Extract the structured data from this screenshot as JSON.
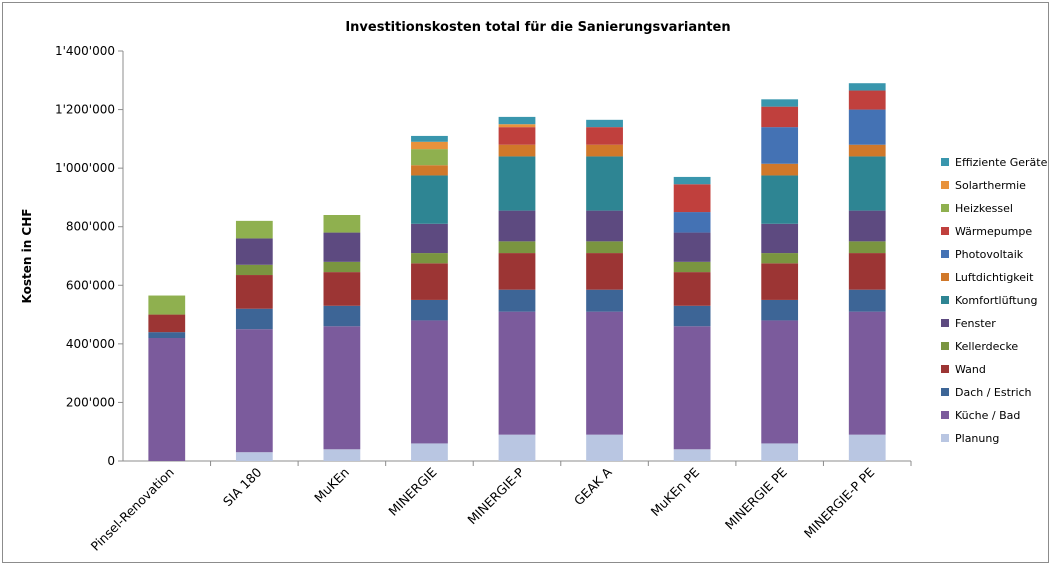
{
  "chart_data": {
    "type": "bar",
    "stacked": true,
    "title": "Investitionskosten total für die Sanierungsvarianten",
    "ylabel": "Kosten in CHF",
    "xlabel": "",
    "ylim": [
      0,
      1400000
    ],
    "yticks": [
      0,
      200000,
      400000,
      600000,
      800000,
      1000000,
      1200000,
      1400000
    ],
    "ytick_labels": [
      "0",
      "200'000",
      "400'000",
      "600'000",
      "800'000",
      "1'000'000",
      "1'200'000",
      "1'400'000"
    ],
    "grid": false,
    "legend_position": "right",
    "categories": [
      "Pinsel-Renovation",
      "SIA 180",
      "MuKEn",
      "MINERGIE",
      "MINERGIE-P",
      "GEAK A",
      "MuKEn PE",
      "MINERGIE PE",
      "MINERGIE-P PE"
    ],
    "series": [
      {
        "name": "Planung",
        "color": "#b9c6e2",
        "values": [
          0,
          30000,
          40000,
          60000,
          90000,
          90000,
          40000,
          60000,
          90000
        ]
      },
      {
        "name": "Küche / Bad",
        "color": "#7b5b9c",
        "values": [
          420000,
          420000,
          420000,
          420000,
          420000,
          420000,
          420000,
          420000,
          420000
        ]
      },
      {
        "name": "Dach / Estrich",
        "color": "#3d6596",
        "values": [
          20000,
          70000,
          70000,
          70000,
          75000,
          75000,
          70000,
          70000,
          75000
        ]
      },
      {
        "name": "Wand",
        "color": "#9c3534",
        "values": [
          60000,
          115000,
          115000,
          125000,
          125000,
          125000,
          115000,
          125000,
          125000
        ]
      },
      {
        "name": "Kellerdecke",
        "color": "#7a9540",
        "values": [
          0,
          35000,
          35000,
          35000,
          40000,
          40000,
          35000,
          35000,
          40000
        ]
      },
      {
        "name": "Fenster",
        "color": "#5d4a80",
        "values": [
          0,
          90000,
          100000,
          100000,
          105000,
          105000,
          100000,
          100000,
          105000
        ]
      },
      {
        "name": "Komfortlüftung",
        "color": "#2e8593",
        "values": [
          0,
          0,
          0,
          165000,
          185000,
          185000,
          0,
          165000,
          185000
        ]
      },
      {
        "name": "Luftdichtigkeit",
        "color": "#d0782a",
        "values": [
          0,
          0,
          0,
          35000,
          40000,
          40000,
          0,
          40000,
          40000
        ]
      },
      {
        "name": "Photovoltaik",
        "color": "#4472b4",
        "values": [
          0,
          0,
          0,
          0,
          0,
          0,
          70000,
          125000,
          120000
        ]
      },
      {
        "name": "Wärmepumpe",
        "color": "#c0403d",
        "values": [
          0,
          0,
          0,
          0,
          60000,
          60000,
          95000,
          70000,
          65000
        ]
      },
      {
        "name": "Heizkessel",
        "color": "#8fb04f",
        "values": [
          65000,
          60000,
          60000,
          55000,
          0,
          0,
          0,
          0,
          0
        ]
      },
      {
        "name": "Solarthermie",
        "color": "#e8923c",
        "values": [
          0,
          0,
          0,
          25000,
          10000,
          0,
          0,
          0,
          0
        ]
      },
      {
        "name": "Effiziente Geräte",
        "color": "#3996ad",
        "values": [
          0,
          0,
          0,
          20000,
          25000,
          25000,
          25000,
          25000,
          25000
        ]
      }
    ]
  }
}
